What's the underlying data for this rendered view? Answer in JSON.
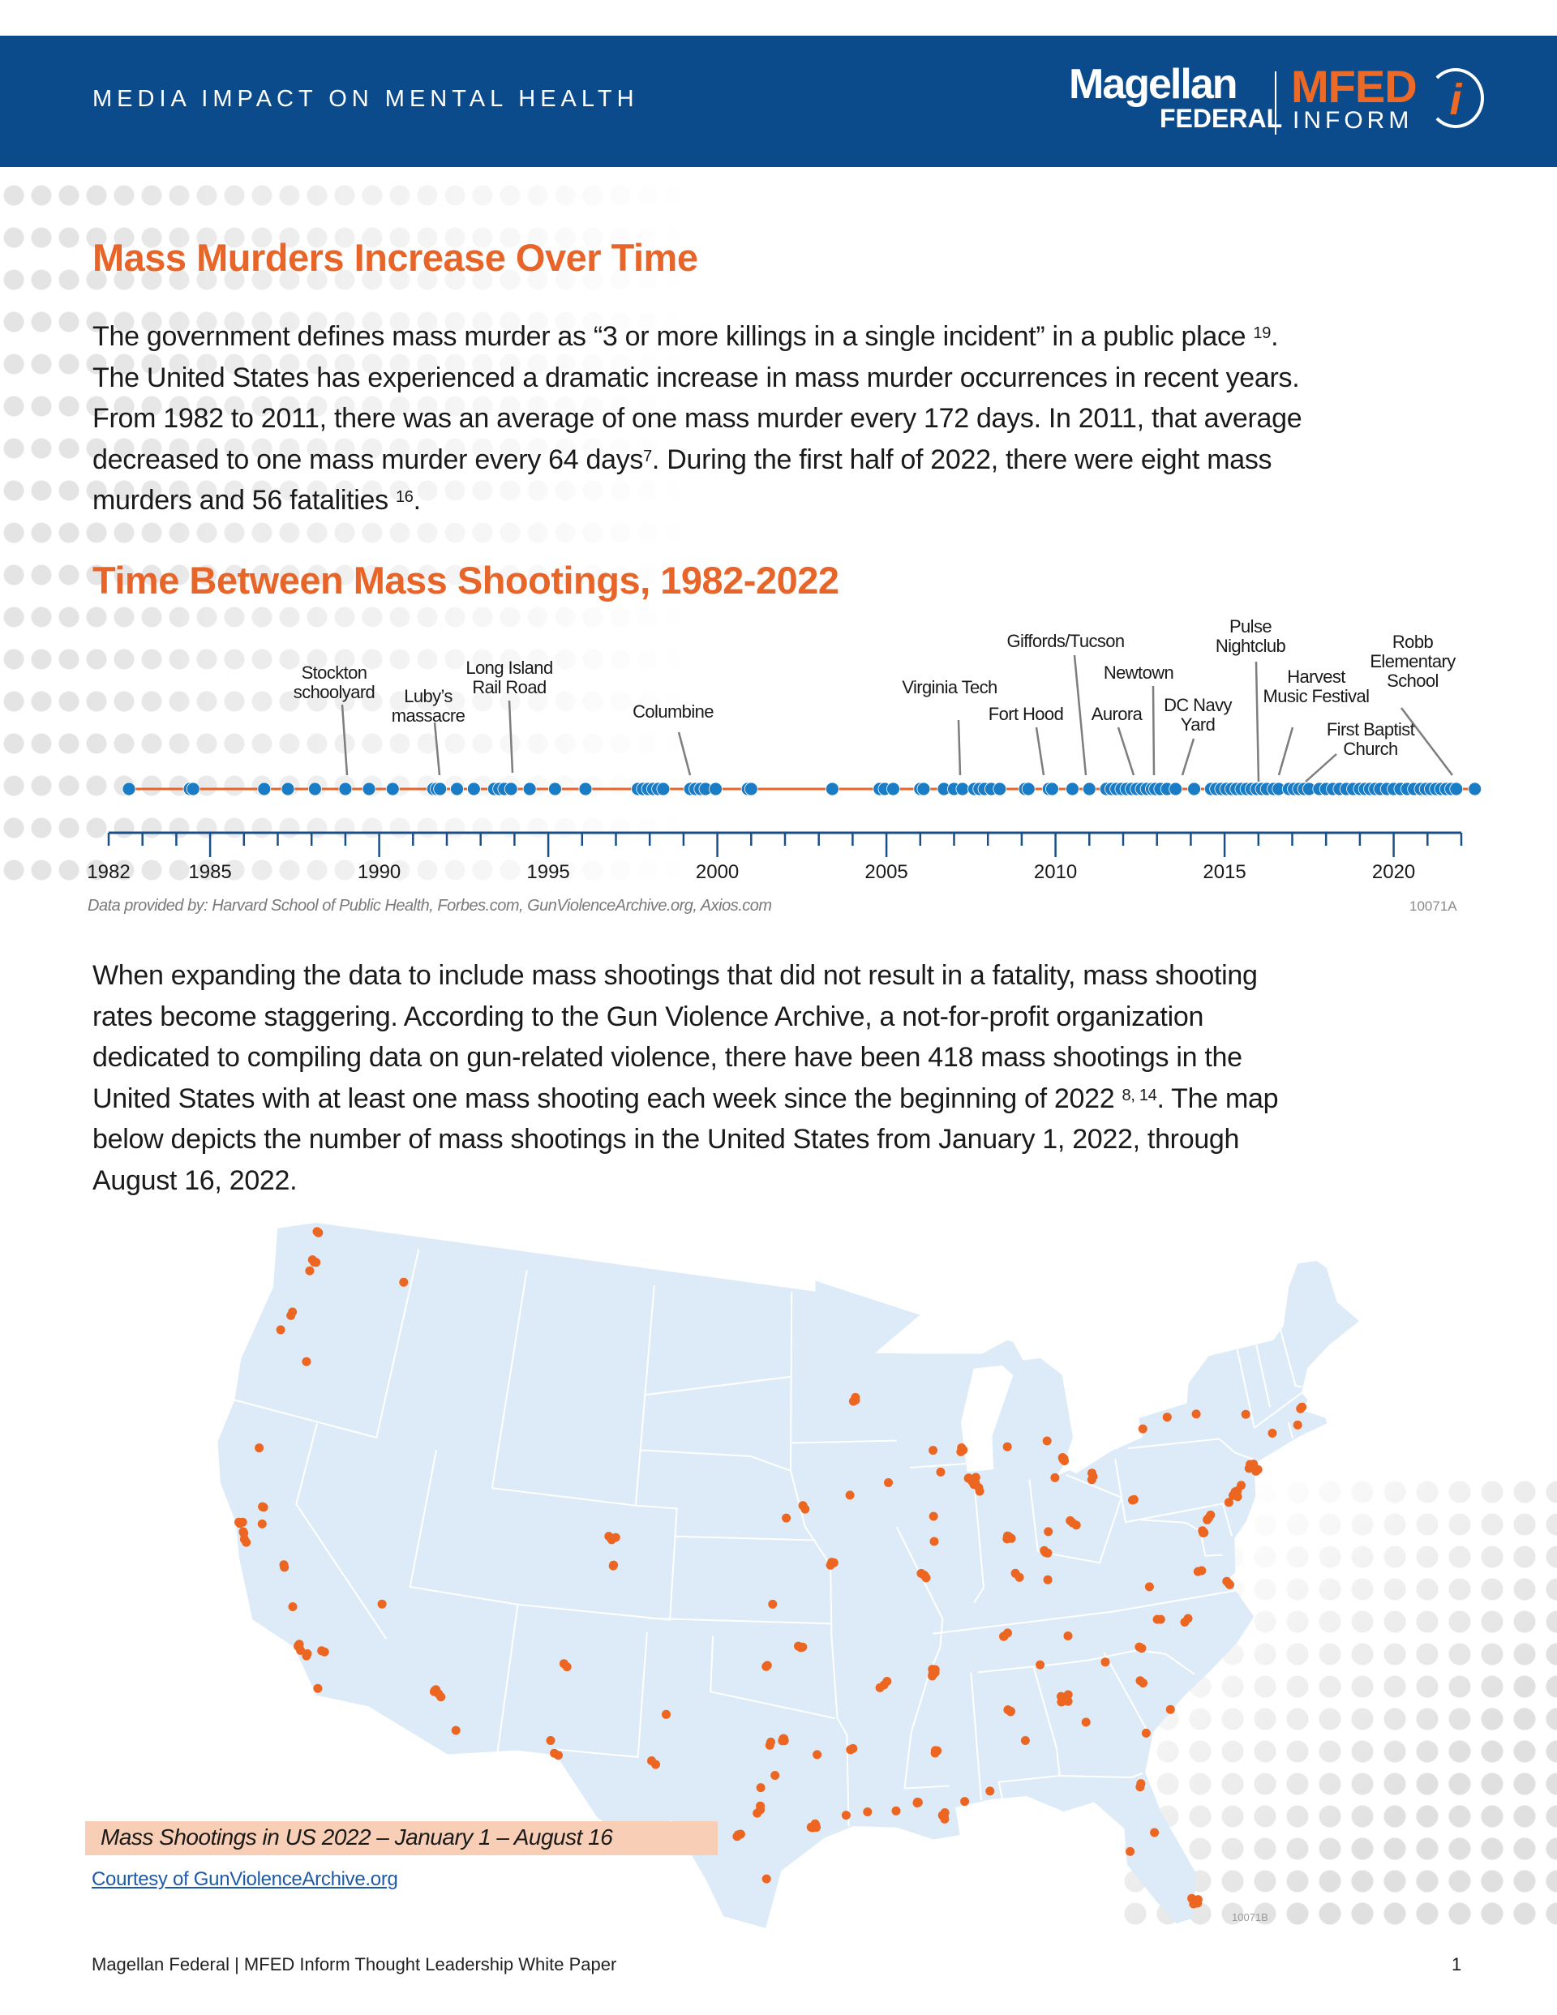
{
  "header": {
    "title": "MEDIA IMPACT ON MENTAL HEALTH",
    "logo_magellan": "Magellan",
    "logo_federal": "FEDERAL",
    "logo_mfed": "MFED",
    "logo_inform": "INFORM",
    "logo_i": "i"
  },
  "colors": {
    "brand_blue": "#0b4b8c",
    "accent_orange": "#e8652a",
    "dot_blue": "#1b7cc6",
    "map_fill": "#dcebf7",
    "map_dot": "#ec6622"
  },
  "section1": {
    "title": "Mass Murders Increase Over Time",
    "lines": [
      {
        "text": "The government defines mass murder as “3 or more killings in a single incident” in a public place ",
        "sup": "19",
        "tail": "."
      },
      {
        "text": "The United States has experienced a dramatic increase in mass murder occurrences in recent years.",
        "sup": "",
        "tail": ""
      },
      {
        "text": "From 1982 to 2011, there was an average of one mass murder every 172 days. In 2011, that average",
        "sup": "",
        "tail": ""
      },
      {
        "text": "decreased to one mass murder every 64 days",
        "sup": "7",
        "tail": ". During the first half of 2022, there were eight mass"
      },
      {
        "text": "murders and 56 fatalities ",
        "sup": "16",
        "tail": "."
      }
    ]
  },
  "section2": {
    "title": "Time Between Mass Shootings, 1982-2022"
  },
  "chart_data": {
    "type": "scatter",
    "title": "Time Between Mass Shootings, 1982-2022",
    "xlabel": "",
    "ylabel": "",
    "xlim": [
      1982,
      2022
    ],
    "tick_labels": [
      "1982",
      "1985",
      "1990",
      "1995",
      "2000",
      "2005",
      "2010",
      "2015",
      "2020"
    ],
    "events": [
      1982.6,
      1984.4,
      1984.5,
      1986.6,
      1987.3,
      1988.1,
      1989.0,
      1989.7,
      1990.4,
      1991.6,
      1991.7,
      1991.8,
      1992.3,
      1992.8,
      1993.4,
      1993.55,
      1993.7,
      1993.9,
      1994.45,
      1995.2,
      1996.1,
      1997.65,
      1997.8,
      1997.95,
      1998.1,
      1998.25,
      1998.4,
      1999.2,
      1999.35,
      1999.5,
      1999.65,
      1999.95,
      2000.9,
      2001.0,
      2003.4,
      2004.8,
      2004.95,
      2005.2,
      2006.0,
      2006.1,
      2006.7,
      2007.0,
      2007.25,
      2007.6,
      2007.75,
      2007.9,
      2008.1,
      2008.35,
      2009.1,
      2009.2,
      2009.8,
      2009.9,
      2010.5,
      2011.0,
      2011.5,
      2011.65,
      2011.8,
      2011.95,
      2012.1,
      2012.25,
      2012.4,
      2012.55,
      2012.7,
      2012.85,
      2012.95,
      2013.1,
      2013.3,
      2013.55,
      2014.1,
      2014.6,
      2014.75,
      2014.9,
      2015.05,
      2015.2,
      2015.35,
      2015.5,
      2015.65,
      2015.8,
      2015.95,
      2016.1,
      2016.25,
      2016.45,
      2016.6,
      2016.9,
      2017.05,
      2017.2,
      2017.35,
      2017.5,
      2017.8,
      2018.0,
      2018.2,
      2018.4,
      2018.6,
      2018.8,
      2019.0,
      2019.15,
      2019.3,
      2019.45,
      2019.6,
      2019.8,
      2020.0,
      2020.2,
      2020.4,
      2020.6,
      2020.8,
      2020.95,
      2021.1,
      2021.25,
      2021.4,
      2021.55,
      2021.7,
      2021.85,
      2022.4
    ],
    "annotations": [
      {
        "label": [
          "Stockton",
          "schoolyard"
        ],
        "year": 1989.0
      },
      {
        "label": [
          "Luby’s",
          "massacre"
        ],
        "year": 1991.8
      },
      {
        "label": [
          "Long Island",
          "Rail Road"
        ],
        "year": 1993.9
      },
      {
        "label": [
          "Columbine"
        ],
        "year": 1999.3
      },
      {
        "label": [
          "Virginia Tech"
        ],
        "year": 2007.3
      },
      {
        "label": [
          "Fort Hood"
        ],
        "year": 2009.9
      },
      {
        "label": [
          "Giffords/Tucson"
        ],
        "year": 2011.0
      },
      {
        "label": [
          "Aurora"
        ],
        "year": 2012.55
      },
      {
        "label": [
          "Newtown"
        ],
        "year": 2012.95
      },
      {
        "label": [
          "DC Navy",
          "Yard"
        ],
        "year": 2013.7
      },
      {
        "label": [
          "Pulse",
          "Nightclub"
        ],
        "year": 2016.45
      },
      {
        "label": [
          "Harvest",
          "Music Festival"
        ],
        "year": 2016.75
      },
      {
        "label": [
          "First Baptist",
          "Church"
        ],
        "year": 2017.85
      },
      {
        "label": [
          "Robb",
          "Elementary",
          "School"
        ],
        "year": 2022.4
      }
    ],
    "source": "Data provided by: Harvard School of Public Health, Forbes.com, GunViolenceArchive.org, Axios.com",
    "figure_code": "10071A"
  },
  "section3": {
    "lines": [
      {
        "text": "When expanding the data to include mass shootings that did not result in a fatality, mass shooting",
        "sup": "",
        "tail": ""
      },
      {
        "text": "rates become staggering. According to the Gun Violence Archive, a not-for-profit organization",
        "sup": "",
        "tail": ""
      },
      {
        "text": "dedicated to compiling data on gun-related violence, there have been 418 mass shootings in the",
        "sup": "",
        "tail": ""
      },
      {
        "text": "United States with at least one mass shooting each week since the beginning of 2022 ",
        "sup": "8, 14",
        "tail": ". The map"
      },
      {
        "text": "below depicts the number of mass shootings in the United States from January 1, 2022, through",
        "sup": "",
        "tail": ""
      },
      {
        "text": "August 16, 2022.",
        "sup": "",
        "tail": ""
      }
    ]
  },
  "map": {
    "caption": "Mass Shootings in US 2022 – January 1 – August 16",
    "credit_link": "Courtesy of GunViolenceArchive.org",
    "figure_code": "10071B",
    "points": [
      [
        -122.3,
        47.6,
        3
      ],
      [
        -122.4,
        47.25,
        1
      ],
      [
        -122.6,
        48.7,
        2
      ],
      [
        -117.4,
        47.7,
        1
      ],
      [
        -122.7,
        45.5,
        2
      ],
      [
        -123.0,
        44.9,
        1
      ],
      [
        -121.3,
        44.05,
        1
      ],
      [
        -122.4,
        40.6,
        1
      ],
      [
        -121.5,
        38.6,
        2
      ],
      [
        -122.3,
        37.8,
        3
      ],
      [
        -122.0,
        37.5,
        2
      ],
      [
        -121.9,
        37.3,
        2
      ],
      [
        -121.3,
        38.0,
        1
      ],
      [
        -119.8,
        36.7,
        2
      ],
      [
        -119.0,
        35.4,
        1
      ],
      [
        -118.3,
        34.05,
        5
      ],
      [
        -117.9,
        33.8,
        2
      ],
      [
        -117.3,
        34.1,
        2
      ],
      [
        -117.1,
        32.75,
        1
      ],
      [
        -115.1,
        36.2,
        1
      ],
      [
        -112.1,
        33.45,
        3
      ],
      [
        -111.9,
        33.4,
        2
      ],
      [
        -110.9,
        32.2,
        1
      ],
      [
        -105.0,
        39.7,
        3
      ],
      [
        -104.8,
        38.8,
        2
      ],
      [
        -106.6,
        35.1,
        2
      ],
      [
        -106.8,
        32.3,
        1
      ],
      [
        -106.4,
        31.8,
        2
      ],
      [
        -96.8,
        32.8,
        4
      ],
      [
        -97.3,
        32.75,
        2
      ],
      [
        -95.4,
        29.8,
        6
      ],
      [
        -98.5,
        29.4,
        3
      ],
      [
        -97.7,
        30.3,
        3
      ],
      [
        -97.4,
        27.8,
        1
      ],
      [
        -101.9,
        33.6,
        1
      ],
      [
        -102.4,
        31.9,
        2
      ],
      [
        -97.7,
        31.1,
        1
      ],
      [
        -95.3,
        32.3,
        1
      ],
      [
        -94.1,
        30.1,
        1
      ],
      [
        -97.1,
        31.55,
        1
      ],
      [
        -97.5,
        35.5,
        2
      ],
      [
        -96.0,
        36.15,
        3
      ],
      [
        -97.3,
        37.7,
        1
      ],
      [
        -94.6,
        39.1,
        3
      ],
      [
        -95.9,
        41.25,
        2
      ],
      [
        -96.7,
        40.8,
        1
      ],
      [
        -93.6,
        41.6,
        1
      ],
      [
        -91.7,
        42.0,
        1
      ],
      [
        -93.3,
        44.98,
        3
      ],
      [
        -87.9,
        43.0,
        3
      ],
      [
        -89.4,
        43.07,
        1
      ],
      [
        -87.6,
        41.85,
        8
      ],
      [
        -87.3,
        41.6,
        2
      ],
      [
        -89.1,
        42.27,
        1
      ],
      [
        -89.65,
        39.8,
        1
      ],
      [
        -89.6,
        40.7,
        1
      ],
      [
        -90.2,
        38.6,
        4
      ],
      [
        -90.0,
        35.1,
        5
      ],
      [
        -86.8,
        36.2,
        3
      ],
      [
        -85.8,
        38.25,
        2
      ],
      [
        -84.5,
        38.05,
        1
      ],
      [
        -86.15,
        39.77,
        5
      ],
      [
        -83.05,
        42.33,
        5
      ],
      [
        -83.7,
        43.0,
        1
      ],
      [
        -85.7,
        42.96,
        1
      ],
      [
        -81.7,
        41.5,
        3
      ],
      [
        -83.0,
        39.96,
        3
      ],
      [
        -84.5,
        39.1,
        3
      ],
      [
        -84.2,
        39.76,
        1
      ],
      [
        -83.55,
        41.65,
        1
      ],
      [
        -80.0,
        40.44,
        2
      ],
      [
        -75.16,
        39.95,
        5
      ],
      [
        -73.95,
        40.7,
        6
      ],
      [
        -74.2,
        40.73,
        2
      ],
      [
        -76.6,
        39.3,
        3
      ],
      [
        -77.0,
        38.9,
        3
      ],
      [
        -77.4,
        37.5,
        2
      ],
      [
        -76.3,
        36.85,
        3
      ],
      [
        -78.6,
        35.8,
        2
      ],
      [
        -80.8,
        35.2,
        2
      ],
      [
        -79.8,
        36.07,
        2
      ],
      [
        -81.0,
        34.0,
        2
      ],
      [
        -79.9,
        32.8,
        1
      ],
      [
        -82.4,
        34.85,
        1
      ],
      [
        -84.4,
        33.75,
        5
      ],
      [
        -83.6,
        32.8,
        1
      ],
      [
        -86.8,
        33.5,
        3
      ],
      [
        -86.3,
        32.4,
        1
      ],
      [
        -88.0,
        30.7,
        1
      ],
      [
        -90.2,
        32.3,
        3
      ],
      [
        -89.1,
        30.4,
        1
      ],
      [
        -90.07,
        29.95,
        4
      ],
      [
        -91.1,
        30.45,
        3
      ],
      [
        -92.0,
        30.2,
        1
      ],
      [
        -93.2,
        30.2,
        1
      ],
      [
        -93.75,
        32.5,
        2
      ],
      [
        -92.3,
        34.75,
        3
      ],
      [
        -81.65,
        30.33,
        2
      ],
      [
        -81.4,
        28.5,
        1
      ],
      [
        -82.5,
        27.95,
        1
      ],
      [
        -80.2,
        25.8,
        5
      ],
      [
        -81.1,
        32.1,
        1
      ],
      [
        -83.9,
        35.96,
        1
      ],
      [
        -85.3,
        35.05,
        1
      ],
      [
        -79.9,
        37.27,
        1
      ],
      [
        -72.7,
        41.76,
        1
      ],
      [
        -71.06,
        42.36,
        2
      ],
      [
        -71.4,
        41.82,
        1
      ],
      [
        -78.9,
        42.9,
        1
      ],
      [
        -77.6,
        43.15,
        1
      ],
      [
        -76.15,
        43.05,
        1
      ],
      [
        -73.75,
        42.65,
        1
      ],
      [
        -75.5,
        39.7,
        1
      ],
      [
        -74.75,
        40.2,
        1
      ]
    ]
  },
  "footer": {
    "text": "Magellan Federal | MFED Inform Thought Leadership White Paper",
    "page": "1"
  }
}
